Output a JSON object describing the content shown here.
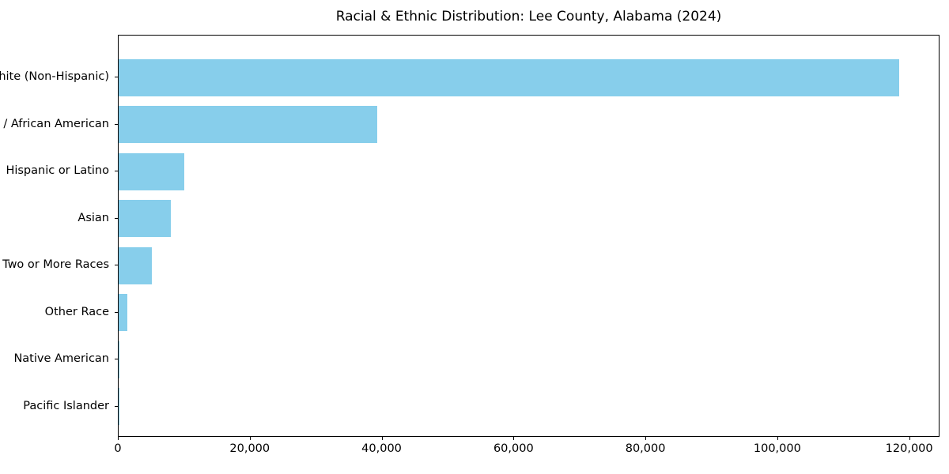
{
  "title": "Racial & Ethnic Distribution: Lee County, Alabama (2024)",
  "chart_data": {
    "type": "bar",
    "orientation": "horizontal",
    "title": "Racial & Ethnic Distribution: Lee County, Alabama (2024)",
    "xlabel": "",
    "ylabel": "",
    "categories": [
      "White (Non-Hispanic)",
      "Black / African American",
      "Hispanic or Latino",
      "Asian",
      "Two or More Races",
      "Other Race",
      "Native American",
      "Pacific Islander"
    ],
    "values": [
      118400,
      39200,
      9900,
      7900,
      5000,
      1300,
      150,
      60
    ],
    "x_ticks": [
      0,
      20000,
      40000,
      60000,
      80000,
      100000,
      120000
    ],
    "x_tick_labels": [
      "0",
      "20,000",
      "40,000",
      "60,000",
      "80,000",
      "100,000",
      "120,000"
    ],
    "xlim": [
      0,
      124600
    ],
    "grid": false,
    "legend": null,
    "bar_color": "#87CEEB",
    "background_color": "#FFFFFF",
    "spine_color": "#000000",
    "text_color": "#000000"
  }
}
